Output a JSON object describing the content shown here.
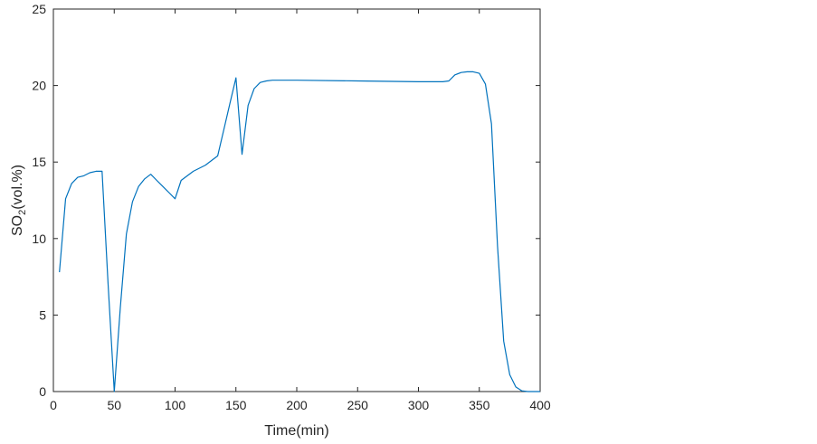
{
  "chart_data": {
    "type": "line",
    "xlabel": "Time(min)",
    "ylabel": {
      "main": "SO",
      "subscript": "2",
      "suffix": "(vol.%)"
    },
    "xlim": [
      0,
      400
    ],
    "ylim": [
      0,
      25
    ],
    "xticks": [
      "0",
      "50",
      "100",
      "150",
      "200",
      "250",
      "300",
      "350",
      "400"
    ],
    "yticks": [
      "0",
      "5",
      "10",
      "15",
      "20",
      "25"
    ],
    "grid": false,
    "line_color": "#0072BD",
    "series": [
      {
        "x": [
          5,
          10,
          15,
          20,
          25,
          30,
          35,
          40,
          45,
          50,
          55,
          60,
          65,
          70,
          75,
          80,
          85,
          90,
          95,
          100,
          105,
          110,
          115,
          120,
          125,
          130,
          135,
          140,
          145,
          150,
          155,
          160,
          165,
          170,
          175,
          180,
          200,
          250,
          300,
          320,
          325,
          330,
          335,
          340,
          345,
          350,
          355,
          360,
          365,
          370,
          375,
          380,
          385,
          390,
          395,
          400
        ],
        "y": [
          7.8,
          12.6,
          13.6,
          14.0,
          14.1,
          14.3,
          14.4,
          14.4,
          7.0,
          0.0,
          5.5,
          10.3,
          12.4,
          13.4,
          13.9,
          14.2,
          13.8,
          13.4,
          13.0,
          12.6,
          13.8,
          14.1,
          14.4,
          14.6,
          14.8,
          15.1,
          15.4,
          17.1,
          18.8,
          20.5,
          15.5,
          18.7,
          19.8,
          20.2,
          20.3,
          20.35,
          20.35,
          20.3,
          20.25,
          20.25,
          20.3,
          20.7,
          20.85,
          20.9,
          20.9,
          20.8,
          20.1,
          17.5,
          9.5,
          3.3,
          1.1,
          0.3,
          0.05,
          0.0,
          0.0,
          0.0
        ]
      }
    ]
  }
}
